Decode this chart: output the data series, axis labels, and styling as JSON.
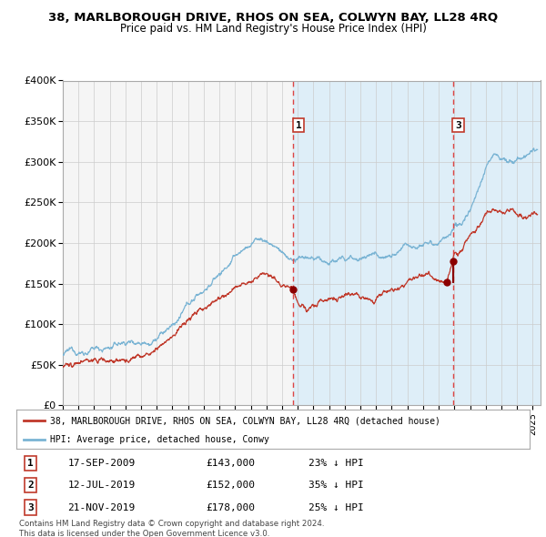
{
  "title": "38, MARLBOROUGH DRIVE, RHOS ON SEA, COLWYN BAY, LL28 4RQ",
  "subtitle": "Price paid vs. HM Land Registry's House Price Index (HPI)",
  "ylim": [
    0,
    400000
  ],
  "yticks": [
    0,
    50000,
    100000,
    150000,
    200000,
    250000,
    300000,
    350000,
    400000
  ],
  "ytick_labels": [
    "£0",
    "£50K",
    "£100K",
    "£150K",
    "£200K",
    "£250K",
    "£300K",
    "£350K",
    "£400K"
  ],
  "hpi_color": "#7ab4d4",
  "price_color": "#c0392b",
  "dashed_color": "#d44",
  "bg_color_left": "#f5f5f5",
  "bg_color_right": "#deeef8",
  "grid_color": "#cccccc",
  "sale1_date": 2009.72,
  "sale1_price": 143000,
  "sale2_date": 2019.53,
  "sale2_price": 152000,
  "sale3_date": 2019.9,
  "sale3_price": 178000,
  "legend_price_label": "38, MARLBOROUGH DRIVE, RHOS ON SEA, COLWYN BAY, LL28 4RQ (detached house)",
  "legend_hpi_label": "HPI: Average price, detached house, Conwy",
  "table_rows": [
    {
      "num": "1",
      "date": "17-SEP-2009",
      "price": "£143,000",
      "pct": "23% ↓ HPI"
    },
    {
      "num": "2",
      "date": "12-JUL-2019",
      "price": "£152,000",
      "pct": "35% ↓ HPI"
    },
    {
      "num": "3",
      "date": "21-NOV-2019",
      "price": "£178,000",
      "pct": "25% ↓ HPI"
    }
  ],
  "footer": "Contains HM Land Registry data © Crown copyright and database right 2024.\nThis data is licensed under the Open Government Licence v3.0.",
  "xlim_start": 1995.0,
  "xlim_end": 2025.5
}
